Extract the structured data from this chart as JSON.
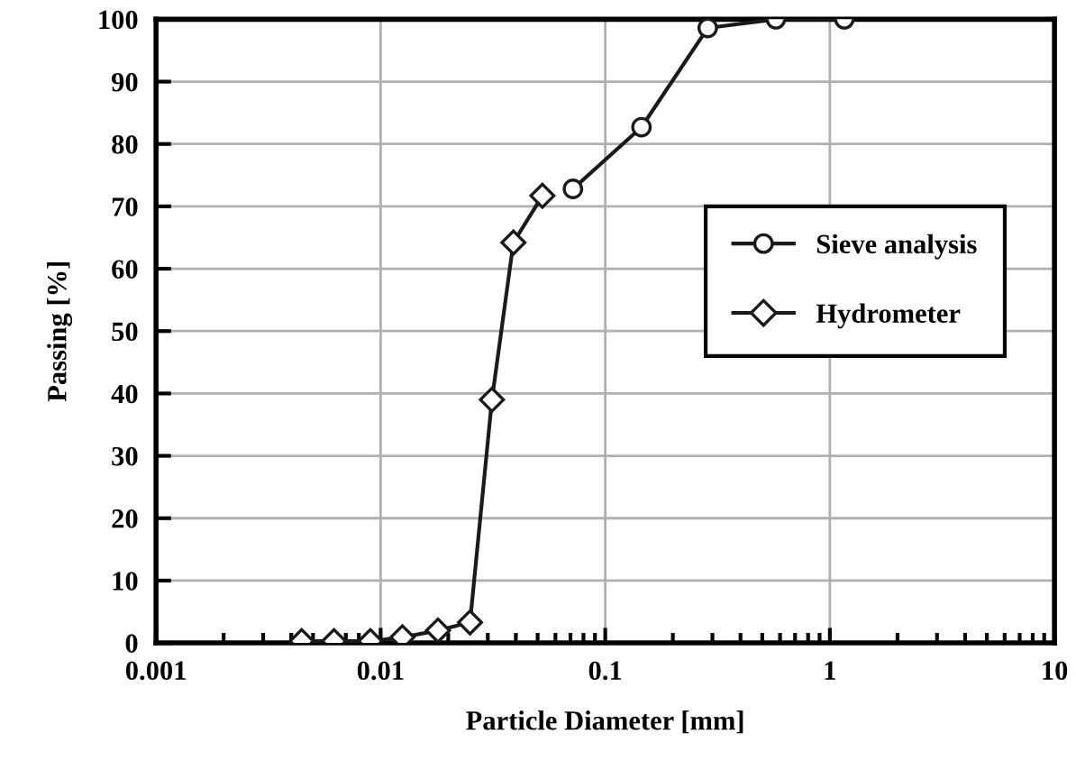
{
  "chart_data": {
    "type": "line",
    "xlabel": "Particle Diameter [mm]",
    "ylabel": "Passing [%]",
    "log": "x",
    "xlim": [
      0.001,
      10
    ],
    "xticks": [
      0.001,
      0.01,
      0.1,
      1,
      10
    ],
    "ylim": [
      0,
      100
    ],
    "yticks": [
      0,
      10,
      20,
      30,
      40,
      50,
      60,
      70,
      80,
      90,
      100
    ],
    "grid": true,
    "legend": "center right",
    "series": [
      {
        "name": "Sieve analysis",
        "color": "#1a1a1a",
        "marker": "circle",
        "x": [
          0.0718,
          0.145,
          0.286,
          0.575,
          1.16
        ],
        "values": [
          72.8,
          82.7,
          98.6,
          100,
          100
        ]
      },
      {
        "name": "Hydrometer",
        "color": "#1a1a1a",
        "marker": "diamond",
        "x": [
          0.00445,
          0.0062,
          0.009,
          0.0125,
          0.018,
          0.025,
          0.0313,
          0.039,
          0.0525
        ],
        "values": [
          0.3,
          0.3,
          0.3,
          0.9,
          2,
          3.3,
          39,
          64.2,
          71.7
        ]
      }
    ]
  }
}
